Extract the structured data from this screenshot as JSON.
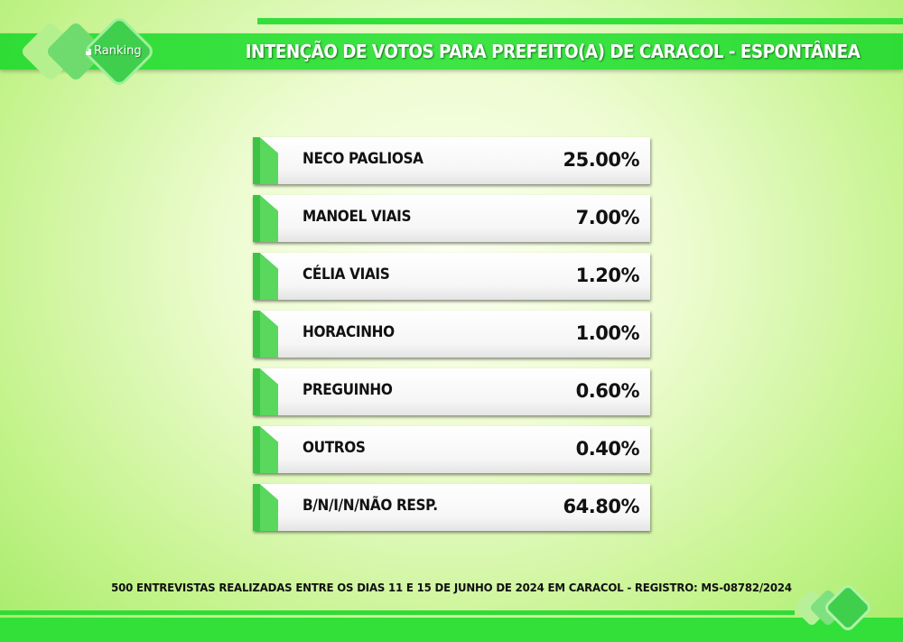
{
  "header": {
    "title": "INTENÇÃO DE VOTOS PARA PREFEITO(A) DE CARACOL - ESPONTÂNEA",
    "logo_text": "Ranking"
  },
  "chart_data": {
    "type": "table",
    "title": "INTENÇÃO DE VOTOS PARA PREFEITO(A) DE CARACOL - ESPONTÂNEA",
    "categories": [
      "NECO PAGLIOSA",
      "MANOEL VIAIS",
      "CÉLIA VIAIS",
      "HORACINHO",
      "PREGUINHO",
      "OUTROS",
      "B/N/I/N/NÃO RESP."
    ],
    "values": [
      25.0,
      7.0,
      1.2,
      1.0,
      0.6,
      0.4,
      64.8
    ],
    "value_labels": [
      "25.00%",
      "7.00%",
      "1.20%",
      "1.00%",
      "0.60%",
      "0.40%",
      "64.80%"
    ]
  },
  "footer": {
    "note": "500 ENTREVISTAS REALIZADAS ENTRE OS DIAS 11 E 15 DE JUNHO DE 2024 EM CARACOL - REGISTRO: MS-08782/2024"
  },
  "colors": {
    "accent": "#33e03a",
    "row_accent": "#5ad75d"
  }
}
